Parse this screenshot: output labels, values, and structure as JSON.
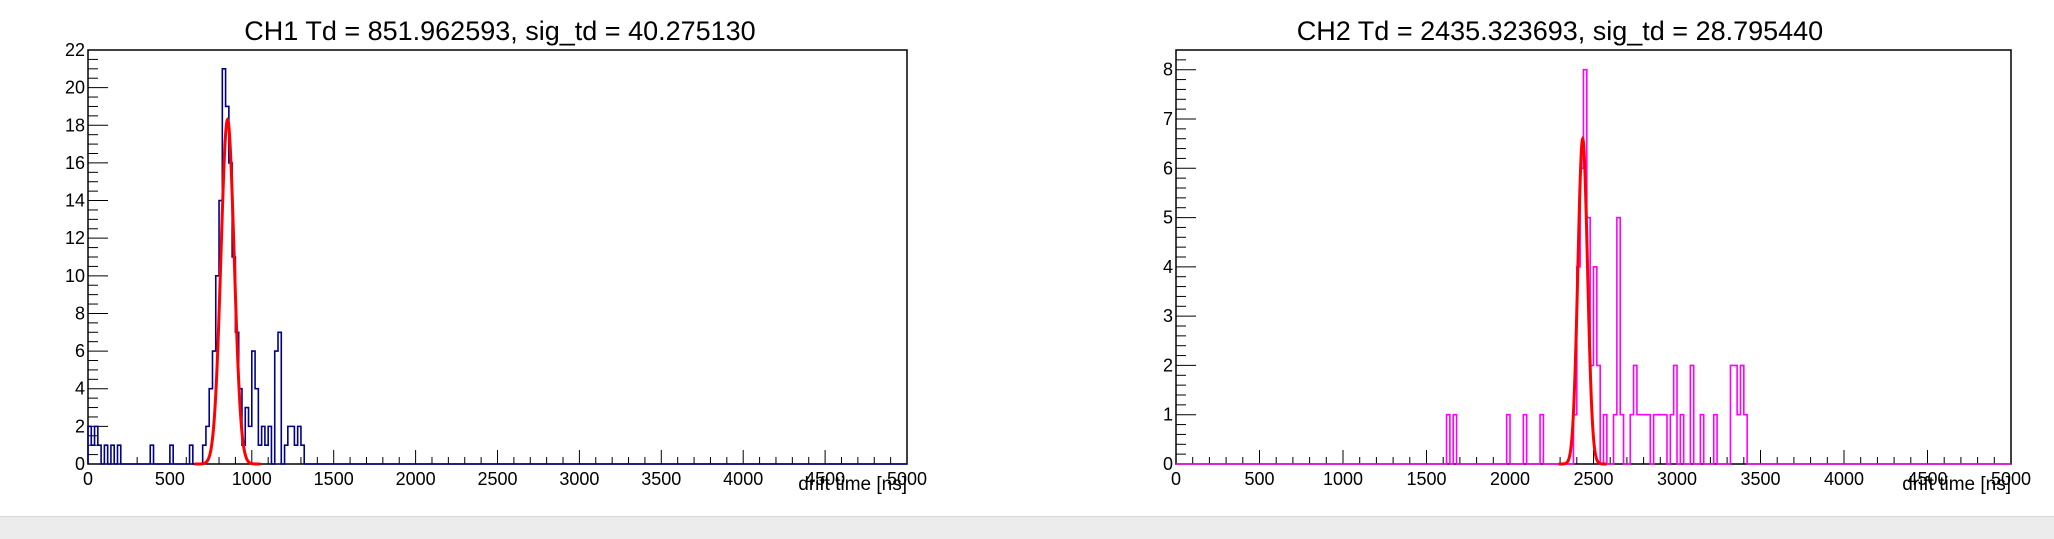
{
  "chart_data": [
    {
      "type": "histogram",
      "title": "CH1 Td = 851.962593, sig_td = 40.275130",
      "xlabel": "drift time [ns]",
      "ylabel": "",
      "xlim": [
        0,
        5000
      ],
      "ylim": [
        0,
        22
      ],
      "bin_width": 20,
      "xticks": [
        0,
        500,
        1000,
        1500,
        2000,
        2500,
        3000,
        3500,
        4000,
        4500,
        5000
      ],
      "yticks": [
        0,
        2,
        4,
        6,
        8,
        10,
        12,
        14,
        16,
        18,
        20,
        22
      ],
      "histogram_color": "#00008b",
      "fit": {
        "type": "gaussian",
        "color": "#ff0000",
        "mean": 851.962593,
        "sigma": 40.27513,
        "amplitude": 18.3
      },
      "bins": [
        [
          0,
          2
        ],
        [
          20,
          1
        ],
        [
          40,
          2
        ],
        [
          60,
          1
        ],
        [
          80,
          0
        ],
        [
          100,
          1
        ],
        [
          120,
          0
        ],
        [
          140,
          1
        ],
        [
          160,
          0
        ],
        [
          180,
          1
        ],
        [
          200,
          0
        ],
        [
          380,
          1
        ],
        [
          400,
          0
        ],
        [
          500,
          1
        ],
        [
          520,
          0
        ],
        [
          620,
          1
        ],
        [
          640,
          0
        ],
        [
          700,
          1
        ],
        [
          720,
          2
        ],
        [
          740,
          4
        ],
        [
          760,
          6
        ],
        [
          780,
          10
        ],
        [
          800,
          14
        ],
        [
          820,
          21
        ],
        [
          840,
          19
        ],
        [
          860,
          16
        ],
        [
          880,
          11
        ],
        [
          900,
          7
        ],
        [
          920,
          4
        ],
        [
          940,
          1
        ],
        [
          960,
          3
        ],
        [
          980,
          2
        ],
        [
          1000,
          6
        ],
        [
          1020,
          4
        ],
        [
          1040,
          1
        ],
        [
          1060,
          2
        ],
        [
          1080,
          1
        ],
        [
          1100,
          2
        ],
        [
          1120,
          0
        ],
        [
          1140,
          6
        ],
        [
          1160,
          7
        ],
        [
          1180,
          0
        ],
        [
          1200,
          1
        ],
        [
          1220,
          2
        ],
        [
          1240,
          2
        ],
        [
          1260,
          1
        ],
        [
          1280,
          2
        ],
        [
          1300,
          1
        ],
        [
          1320,
          0
        ]
      ]
    },
    {
      "type": "histogram",
      "title": "CH2 Td = 2435.323693, sig_td = 28.795440",
      "xlabel": "drift time [ns]",
      "ylabel": "",
      "xlim": [
        0,
        5000
      ],
      "ylim": [
        0,
        8.4
      ],
      "bin_width": 20,
      "xticks": [
        0,
        500,
        1000,
        1500,
        2000,
        2500,
        3000,
        3500,
        4000,
        4500,
        5000
      ],
      "yticks": [
        0,
        1,
        2,
        3,
        4,
        5,
        6,
        7,
        8
      ],
      "histogram_color": "#ff00ff",
      "fit": {
        "type": "gaussian",
        "color": "#ff0000",
        "mean": 2435.323693,
        "sigma": 28.79544,
        "amplitude": 6.6
      },
      "bins": [
        [
          1620,
          1
        ],
        [
          1640,
          0
        ],
        [
          1660,
          1
        ],
        [
          1680,
          0
        ],
        [
          1980,
          1
        ],
        [
          2000,
          0
        ],
        [
          2080,
          1
        ],
        [
          2100,
          0
        ],
        [
          2180,
          1
        ],
        [
          2200,
          0
        ],
        [
          2380,
          1
        ],
        [
          2400,
          4
        ],
        [
          2420,
          6
        ],
        [
          2440,
          8
        ],
        [
          2460,
          5
        ],
        [
          2480,
          2
        ],
        [
          2500,
          4
        ],
        [
          2520,
          2
        ],
        [
          2540,
          0
        ],
        [
          2560,
          1
        ],
        [
          2580,
          0
        ],
        [
          2620,
          1
        ],
        [
          2640,
          5
        ],
        [
          2660,
          1
        ],
        [
          2680,
          0
        ],
        [
          2720,
          1
        ],
        [
          2740,
          2
        ],
        [
          2760,
          1
        ],
        [
          2800,
          1
        ],
        [
          2840,
          0
        ],
        [
          2860,
          1
        ],
        [
          2900,
          1
        ],
        [
          2940,
          0
        ],
        [
          2960,
          1
        ],
        [
          2980,
          2
        ],
        [
          3000,
          0
        ],
        [
          3020,
          1
        ],
        [
          3040,
          0
        ],
        [
          3080,
          2
        ],
        [
          3100,
          0
        ],
        [
          3140,
          1
        ],
        [
          3160,
          0
        ],
        [
          3220,
          1
        ],
        [
          3240,
          0
        ],
        [
          3320,
          2
        ],
        [
          3360,
          1
        ],
        [
          3380,
          2
        ],
        [
          3400,
          1
        ],
        [
          3420,
          0
        ]
      ]
    }
  ]
}
